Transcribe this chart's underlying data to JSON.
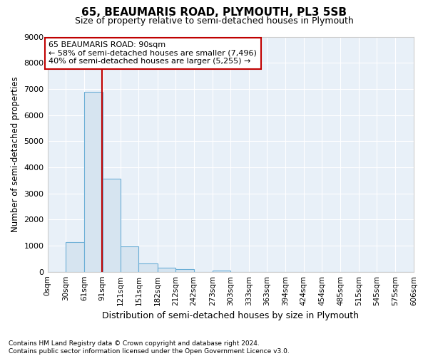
{
  "title": "65, BEAUMARIS ROAD, PLYMOUTH, PL3 5SB",
  "subtitle": "Size of property relative to semi-detached houses in Plymouth",
  "xlabel": "Distribution of semi-detached houses by size in Plymouth",
  "ylabel": "Number of semi-detached properties",
  "bar_color": "#d6e4f0",
  "bar_edge_color": "#6baed6",
  "bg_color": "#e8f0f8",
  "grid_color": "#ffffff",
  "property_size": 90,
  "property_line_color": "#c00000",
  "annotation_box_color": "#c00000",
  "pct_smaller": 58,
  "pct_larger": 40,
  "n_smaller": "7,496",
  "n_larger": "5,255",
  "bin_edges": [
    0,
    30,
    61,
    91,
    121,
    151,
    182,
    212,
    242,
    273,
    303,
    333,
    363,
    394,
    424,
    454,
    485,
    515,
    545,
    575,
    606
  ],
  "bin_labels": [
    "0sqm",
    "30sqm",
    "61sqm",
    "91sqm",
    "121sqm",
    "151sqm",
    "182sqm",
    "212sqm",
    "242sqm",
    "273sqm",
    "303sqm",
    "333sqm",
    "363sqm",
    "394sqm",
    "424sqm",
    "454sqm",
    "485sqm",
    "515sqm",
    "545sqm",
    "575sqm",
    "606sqm"
  ],
  "bar_heights": [
    0,
    1130,
    6890,
    3570,
    970,
    330,
    150,
    90,
    0,
    55,
    0,
    0,
    0,
    0,
    0,
    0,
    0,
    0,
    0,
    0
  ],
  "ylim": [
    0,
    9000
  ],
  "yticks": [
    0,
    1000,
    2000,
    3000,
    4000,
    5000,
    6000,
    7000,
    8000,
    9000
  ],
  "footnote_line1": "Contains HM Land Registry data © Crown copyright and database right 2024.",
  "footnote_line2": "Contains public sector information licensed under the Open Government Licence v3.0.",
  "figsize": [
    6.0,
    5.0
  ],
  "dpi": 100
}
